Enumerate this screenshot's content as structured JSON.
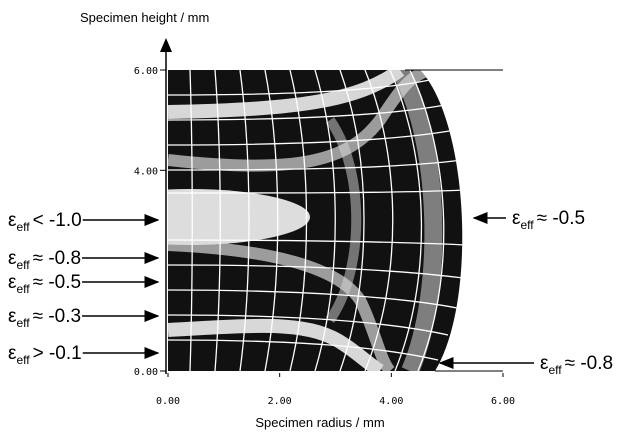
{
  "chart_data": {
    "type": "field-map",
    "xlabel": "Specimen radius / mm",
    "ylabel": "Specimen height / mm",
    "xlim": [
      0,
      6
    ],
    "ylim": [
      0,
      6
    ],
    "xticks": [
      {
        "value": 0,
        "label": "0.00"
      },
      {
        "value": 2,
        "label": "2.00"
      },
      {
        "value": 4,
        "label": "4.00"
      },
      {
        "value": 6,
        "label": "6.00"
      }
    ],
    "yticks": [
      {
        "value": 0,
        "label": "0.00"
      },
      {
        "value": 4,
        "label": "4.00"
      },
      {
        "value": 6,
        "label": "6.00"
      }
    ],
    "annotations": [
      {
        "symbol": "ε",
        "subscript": "eff",
        "relation": "< -1.0"
      },
      {
        "symbol": "ε",
        "subscript": "eff",
        "relation": "≈ -0.8"
      },
      {
        "symbol": "ε",
        "subscript": "eff",
        "relation": "≈ -0.5"
      },
      {
        "symbol": "ε",
        "subscript": "eff",
        "relation": "≈ -0.3"
      },
      {
        "symbol": "ε",
        "subscript": "eff",
        "relation": "> -0.1"
      },
      {
        "symbol": "ε",
        "subscript": "eff",
        "relation": "≈ -0.5"
      },
      {
        "symbol": "ε",
        "subscript": "eff",
        "relation": "≈ -0.8"
      }
    ]
  }
}
